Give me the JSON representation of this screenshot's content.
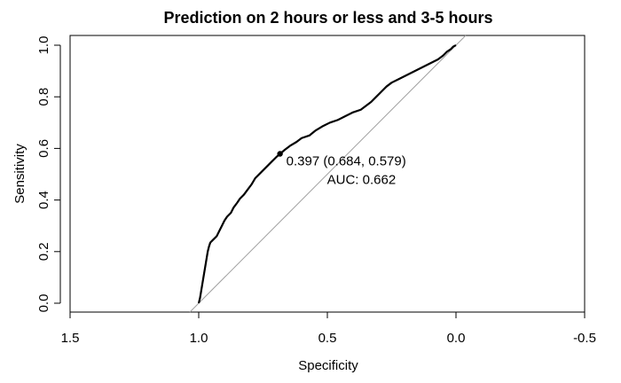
{
  "chart_data": {
    "type": "line",
    "title": "Prediction on 2 hours or less and 3-5 hours",
    "xlabel": "Specificity",
    "ylabel": "Sensitivity",
    "xlim": [
      1.5,
      -0.5
    ],
    "ylim": [
      0,
      1
    ],
    "x_reversed": true,
    "grid": false,
    "x_ticks": [
      {
        "value": 1.5,
        "label": "1.5"
      },
      {
        "value": 1.0,
        "label": "1.0"
      },
      {
        "value": 0.5,
        "label": "0.5"
      },
      {
        "value": 0.0,
        "label": "0.0"
      },
      {
        "value": -0.5,
        "label": "-0.5"
      }
    ],
    "y_ticks": [
      {
        "value": 0.0,
        "label": "0.0"
      },
      {
        "value": 0.2,
        "label": "0.2"
      },
      {
        "value": 0.4,
        "label": "0.4"
      },
      {
        "value": 0.6,
        "label": "0.6"
      },
      {
        "value": 0.8,
        "label": "0.8"
      },
      {
        "value": 1.0,
        "label": "1.0"
      }
    ],
    "series": [
      {
        "color": "#000000",
        "points": [
          [
            1.0,
            0.0
          ],
          [
            0.995,
            0.02
          ],
          [
            0.99,
            0.05
          ],
          [
            0.985,
            0.08
          ],
          [
            0.98,
            0.11
          ],
          [
            0.975,
            0.14
          ],
          [
            0.97,
            0.17
          ],
          [
            0.965,
            0.2
          ],
          [
            0.96,
            0.22
          ],
          [
            0.955,
            0.235
          ],
          [
            0.945,
            0.245
          ],
          [
            0.93,
            0.26
          ],
          [
            0.92,
            0.28
          ],
          [
            0.91,
            0.3
          ],
          [
            0.9,
            0.32
          ],
          [
            0.89,
            0.335
          ],
          [
            0.875,
            0.35
          ],
          [
            0.865,
            0.37
          ],
          [
            0.85,
            0.39
          ],
          [
            0.84,
            0.405
          ],
          [
            0.825,
            0.42
          ],
          [
            0.81,
            0.44
          ],
          [
            0.795,
            0.46
          ],
          [
            0.78,
            0.485
          ],
          [
            0.76,
            0.505
          ],
          [
            0.745,
            0.52
          ],
          [
            0.73,
            0.535
          ],
          [
            0.715,
            0.55
          ],
          [
            0.7,
            0.565
          ],
          [
            0.684,
            0.579
          ],
          [
            0.665,
            0.595
          ],
          [
            0.645,
            0.61
          ],
          [
            0.62,
            0.625
          ],
          [
            0.6,
            0.64
          ],
          [
            0.57,
            0.65
          ],
          [
            0.545,
            0.67
          ],
          [
            0.52,
            0.685
          ],
          [
            0.49,
            0.7
          ],
          [
            0.46,
            0.71
          ],
          [
            0.43,
            0.725
          ],
          [
            0.4,
            0.74
          ],
          [
            0.37,
            0.75
          ],
          [
            0.35,
            0.765
          ],
          [
            0.33,
            0.78
          ],
          [
            0.31,
            0.8
          ],
          [
            0.29,
            0.82
          ],
          [
            0.27,
            0.84
          ],
          [
            0.25,
            0.855
          ],
          [
            0.22,
            0.87
          ],
          [
            0.19,
            0.885
          ],
          [
            0.16,
            0.9
          ],
          [
            0.13,
            0.915
          ],
          [
            0.1,
            0.93
          ],
          [
            0.07,
            0.945
          ],
          [
            0.05,
            0.96
          ],
          [
            0.035,
            0.975
          ],
          [
            0.02,
            0.985
          ],
          [
            0.01,
            0.995
          ],
          [
            0.0,
            1.0
          ]
        ]
      }
    ],
    "reference_line": {
      "from": [
        1.0,
        0.0
      ],
      "to": [
        0.0,
        1.0
      ],
      "color": "#a0a0a0"
    },
    "highlight_point": {
      "x": 0.684,
      "y": 0.579
    },
    "annotations": [
      {
        "text": "0.397 (0.684, 0.579)"
      },
      {
        "text": "AUC: 0.662"
      }
    ]
  }
}
